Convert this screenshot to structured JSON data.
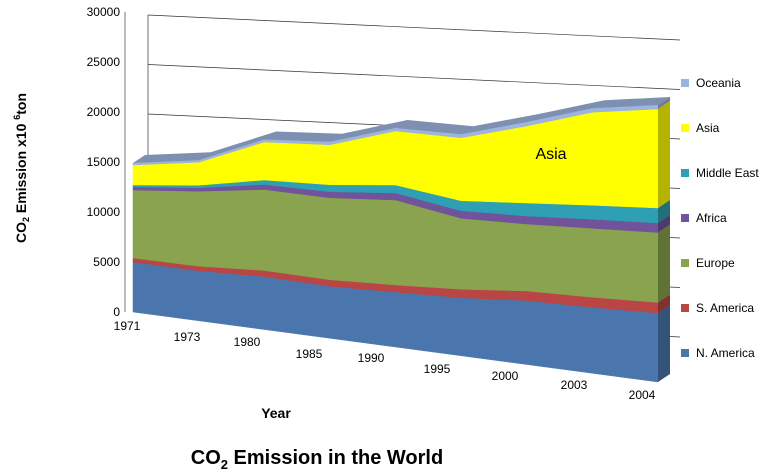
{
  "chart_data": {
    "type": "area",
    "stacked": true,
    "three_d": true,
    "title": "CO2 Emission in the World",
    "title_main": "CO",
    "title_sub": "2",
    "title_rest": " Emission in the World",
    "xlabel": "Year",
    "ylabel": "CO2 Emission  x10 6ton",
    "ylabel_parts": {
      "a": "CO",
      "b": "2",
      "c": " Emission  x10 ",
      "d": "6",
      "e": "ton"
    },
    "ylim": [
      0,
      30000
    ],
    "yticks": [
      0,
      5000,
      10000,
      15000,
      20000,
      25000,
      30000
    ],
    "grid": true,
    "legend_position": "right",
    "categories": [
      "1971",
      "1973",
      "1980",
      "1985",
      "1990",
      "1995",
      "2000",
      "2003",
      "2004"
    ],
    "series": [
      {
        "name": "N. America",
        "color": "#4a76ad",
        "values": [
          5000,
          5000,
          5300,
          5200,
          5500,
          5800,
          6400,
          6600,
          6900
        ]
      },
      {
        "name": "S. America",
        "color": "#b94544",
        "values": [
          400,
          450,
          600,
          650,
          700,
          850,
          950,
          1000,
          1050
        ]
      },
      {
        "name": "Europe",
        "color": "#8aa34f",
        "values": [
          6800,
          7500,
          8100,
          8200,
          8500,
          7100,
          6700,
          6900,
          7000
        ]
      },
      {
        "name": "Africa",
        "color": "#70539a",
        "values": [
          300,
          350,
          500,
          600,
          700,
          750,
          800,
          900,
          950
        ]
      },
      {
        "name": "Middle East",
        "color": "#2f9fb3",
        "values": [
          200,
          250,
          450,
          700,
          800,
          1000,
          1300,
          1400,
          1500
        ]
      },
      {
        "name": "Asia",
        "color": "#ffff00",
        "values": [
          2000,
          2300,
          3800,
          4000,
          5400,
          6300,
          7700,
          9300,
          9900
        ]
      },
      {
        "name": "Oceania",
        "color": "#9cb4de",
        "values": [
          200,
          200,
          250,
          300,
          300,
          350,
          400,
          400,
          400
        ]
      }
    ],
    "annotations": [
      {
        "text": "Asia",
        "series": "Asia"
      }
    ]
  }
}
